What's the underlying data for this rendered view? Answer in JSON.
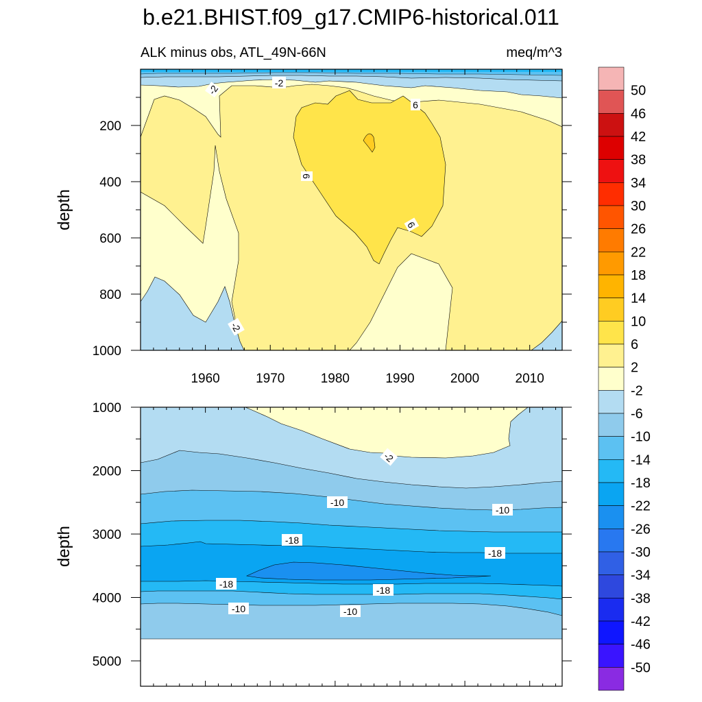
{
  "figure": {
    "title": "b.e21.BHIST.f09_g17.CMIP6-historical.011",
    "left_subtitle": "ALK minus obs, ATL_49N-66N",
    "right_subtitle": "meq/m^3"
  },
  "colorbar": {
    "labels": [
      "50",
      "46",
      "42",
      "38",
      "34",
      "30",
      "26",
      "22",
      "18",
      "14",
      "10",
      "6",
      "2",
      "-2",
      "-6",
      "-10",
      "-14",
      "-18",
      "-22",
      "-26",
      "-30",
      "-34",
      "-38",
      "-42",
      "-46",
      "-50"
    ],
    "colors": [
      "#f5b5b5",
      "#e05555",
      "#cc1111",
      "#dd0000",
      "#ee1111",
      "#ff2d00",
      "#ff5500",
      "#ff7b00",
      "#ff9a00",
      "#ffb400",
      "#ffcc22",
      "#ffe44a",
      "#fff190",
      "#ffffcc",
      "#b3dcf2",
      "#8fcbec",
      "#5cc1f2",
      "#24b9f5",
      "#0aa5f2",
      "#1a90f0",
      "#2878f0",
      "#3060e5",
      "#2e48de",
      "#1a2cf0",
      "#0f16ff",
      "#3a14ff",
      "#8a2be2"
    ]
  },
  "chart_data": [
    {
      "type": "contour",
      "name": "upper panel (0-1000 m)",
      "xlabel": "",
      "ylabel": "depth",
      "xlim": [
        1950,
        2015
      ],
      "ylim": [
        0,
        1000
      ],
      "y_reversed": true,
      "xticks": [
        "1960",
        "1970",
        "1980",
        "1990",
        "2000",
        "2010"
      ],
      "yticks": [
        "200",
        "400",
        "600",
        "800",
        "1000"
      ],
      "contour_labels": [
        "-2",
        "-2",
        "6",
        "6",
        "6",
        "-2"
      ],
      "approx_fields": {
        "surface_layer_0_50m": "-30 to -6",
        "upper_0_150m": "-6 to -2",
        "middle_150_900m": "-2 to 6",
        "core_1975_1995_150_700m": "6 to 10",
        "deep_edges_800_1000m": "-6 to -2"
      }
    },
    {
      "type": "contour",
      "name": "lower panel (1000-5400 m)",
      "xlabel": "",
      "ylabel": "depth",
      "xlim": [
        1950,
        2015
      ],
      "ylim": [
        1000,
        5400
      ],
      "y_reversed": true,
      "yticks": [
        "1000",
        "2000",
        "3000",
        "4000",
        "5000"
      ],
      "contour_labels": [
        "-2",
        "-10",
        "-10",
        "-18",
        "-18",
        "-18",
        "-18",
        "-10",
        "-10"
      ],
      "approx_fields": {
        "1000_1600m_1966_2004": "-2 to 2",
        "1000_2000m": "-6 to -2",
        "2000_2500m": "-10 to -6",
        "2500_3000m": "-14 to -10",
        "3000_3200m": "-18 to -14",
        "3200_3700m": "-22 to -18",
        "3450_3650m_1967_2003": "-26 to -22",
        "4600m_bottom_of_data": "-6 to -2"
      }
    }
  ]
}
